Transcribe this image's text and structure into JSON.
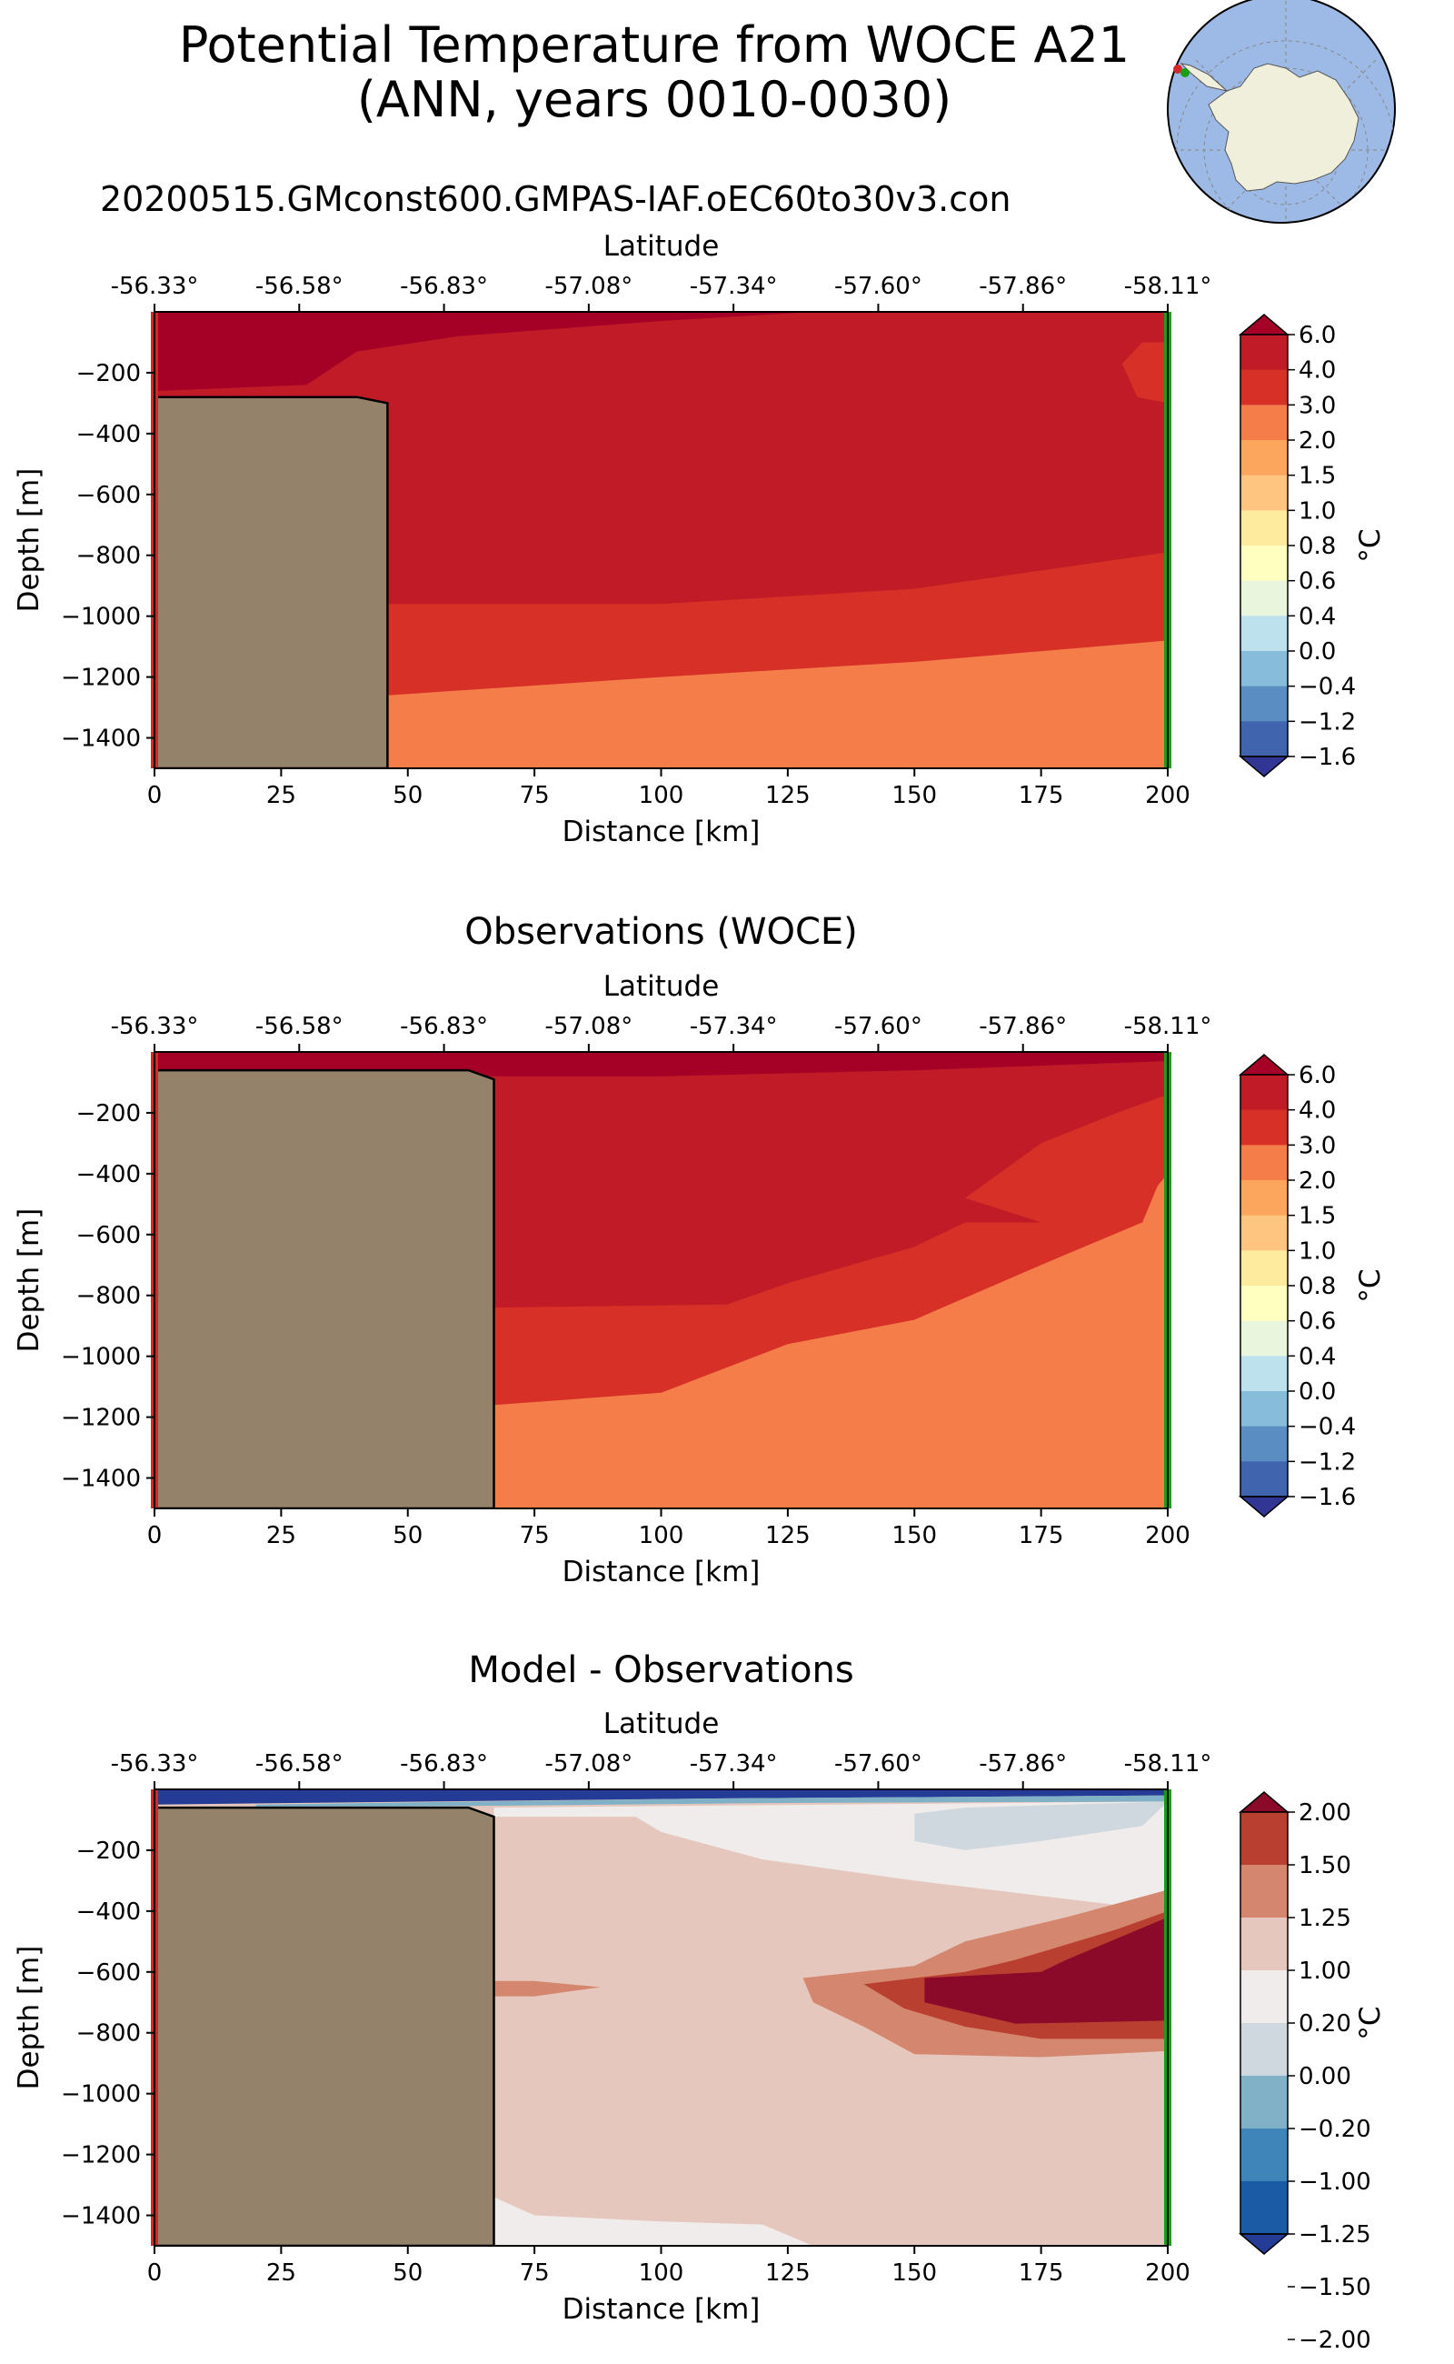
{
  "figure": {
    "title_line1": "Potential Temperature from WOCE A21",
    "title_line2": "(ANN, years 0010-0030)",
    "run_name": "20200515.GMconst600.GMPAS-IAF.oEC60to30v3.con",
    "inset_map": "south-polar-stereographic-antarctica-with-transect-endpoints"
  },
  "colors": {
    "land": "#94836a",
    "section_start_line": "#d62728",
    "section_end_line": "#1a9e1a",
    "map_ocean": "#9db9e6",
    "map_land": "#efefdc"
  },
  "chart_data": [
    {
      "type": "heatmap",
      "panel": "model",
      "title": "",
      "xlabel": "Distance [km]",
      "ylabel": "Depth [m]",
      "top_xlabel": "Latitude",
      "xlim": [
        0,
        200
      ],
      "ylim": [
        -1500,
        0
      ],
      "xticks": [
        0,
        25,
        50,
        75,
        100,
        125,
        150,
        175,
        200
      ],
      "yticks": [
        -200,
        -400,
        -600,
        -800,
        -1000,
        -1200,
        -1400
      ],
      "yticklabels": [
        "−200",
        "−400",
        "−600",
        "−800",
        "−1000",
        "−1200",
        "−1400"
      ],
      "latitude_ticks": [
        "-56.33°",
        "-56.58°",
        "-56.83°",
        "-57.08°",
        "-57.34°",
        "-57.60°",
        "-57.86°",
        "-58.11°"
      ],
      "bathymetry": [
        [
          0,
          -280
        ],
        [
          40,
          -280
        ],
        [
          46,
          -300
        ],
        [
          46,
          -1500
        ]
      ],
      "regions": [
        {
          "level": ">6.0",
          "polygon": [
            [
              0,
              0
            ],
            [
              130,
              0
            ],
            [
              100,
              -30
            ],
            [
              60,
              -80
            ],
            [
              40,
              -130
            ],
            [
              30,
              -240
            ],
            [
              0,
              -260
            ]
          ]
        },
        {
          "level": "3.0-4.0",
          "polygon": [
            [
              200,
              -100
            ],
            [
              195,
              -100
            ],
            [
              191,
              -170
            ],
            [
              194,
              -280
            ],
            [
              200,
              -300
            ]
          ]
        },
        {
          "level": "3.0-4.0",
          "polygon": [
            [
              46,
              -960
            ],
            [
              100,
              -960
            ],
            [
              150,
              -910
            ],
            [
              200,
              -790
            ],
            [
              200,
              -1080
            ],
            [
              150,
              -1150
            ],
            [
              100,
              -1200
            ],
            [
              46,
              -1260
            ]
          ]
        },
        {
          "level": "2.0-3.0",
          "polygon": [
            [
              46,
              -1260
            ],
            [
              100,
              -1200
            ],
            [
              150,
              -1150
            ],
            [
              200,
              -1080
            ],
            [
              200,
              -1500
            ],
            [
              46,
              -1500
            ]
          ]
        }
      ],
      "background_level": "4.0-6.0",
      "colorbar": {
        "label": "°C",
        "ticks": [
          "6.0",
          "4.0",
          "3.0",
          "2.0",
          "1.5",
          "1.0",
          "0.8",
          "0.6",
          "0.4",
          "0.0",
          "−0.4",
          "−1.2",
          "−1.6"
        ],
        "colors": [
          "#a50026",
          "#c01b27",
          "#d73027",
          "#f57d4a",
          "#fca55d",
          "#fdc57f",
          "#feeb9e",
          "#ffffbf",
          "#e9f5dc",
          "#bde2ee",
          "#87bdda",
          "#5a8dc2",
          "#4164ae",
          "#313695"
        ]
      }
    },
    {
      "type": "heatmap",
      "panel": "observations",
      "title": "Observations (WOCE)",
      "xlabel": "Distance [km]",
      "ylabel": "Depth [m]",
      "top_xlabel": "Latitude",
      "xlim": [
        0,
        200
      ],
      "ylim": [
        -1500,
        0
      ],
      "xticks": [
        0,
        25,
        50,
        75,
        100,
        125,
        150,
        175,
        200
      ],
      "yticks": [
        -200,
        -400,
        -600,
        -800,
        -1000,
        -1200,
        -1400
      ],
      "yticklabels": [
        "−200",
        "−400",
        "−600",
        "−800",
        "−1000",
        "−1200",
        "−1400"
      ],
      "latitude_ticks": [
        "-56.33°",
        "-56.58°",
        "-56.83°",
        "-57.08°",
        "-57.34°",
        "-57.60°",
        "-57.86°",
        "-58.11°"
      ],
      "bathymetry": [
        [
          0,
          -60
        ],
        [
          62,
          -60
        ],
        [
          67,
          -90
        ],
        [
          67,
          -1500
        ]
      ],
      "regions": [
        {
          "level": ">6.0",
          "polygon": [
            [
              0,
              0
            ],
            [
              200,
              0
            ],
            [
              200,
              -30
            ],
            [
              150,
              -60
            ],
            [
              100,
              -80
            ],
            [
              0,
              -80
            ]
          ]
        },
        {
          "level": "3.0-4.0",
          "polygon": [
            [
              200,
              -140
            ],
            [
              190,
              -200
            ],
            [
              175,
              -300
            ],
            [
              160,
              -480
            ],
            [
              175,
              -560
            ],
            [
              200,
              -800
            ]
          ]
        },
        {
          "level": "3.0-4.0",
          "polygon": [
            [
              67,
              -840
            ],
            [
              113,
              -830
            ],
            [
              125,
              -760
            ],
            [
              150,
              -640
            ],
            [
              160,
              -560
            ],
            [
              175,
              -560
            ],
            [
              200,
              -570
            ],
            [
              200,
              -820
            ],
            [
              150,
              -880
            ],
            [
              125,
              -960
            ],
            [
              100,
              -1120
            ],
            [
              67,
              -1160
            ]
          ]
        },
        {
          "level": "2.0-3.0",
          "polygon": [
            [
              67,
              -1160
            ],
            [
              100,
              -1120
            ],
            [
              125,
              -960
            ],
            [
              150,
              -880
            ],
            [
              175,
              -700
            ],
            [
              195,
              -560
            ],
            [
              196,
              -520
            ],
            [
              198,
              -440
            ],
            [
              200,
              -400
            ],
            [
              200,
              -1500
            ],
            [
              67,
              -1500
            ]
          ]
        }
      ],
      "background_level": "4.0-6.0",
      "colorbar": {
        "label": "°C",
        "ticks": [
          "6.0",
          "4.0",
          "3.0",
          "2.0",
          "1.5",
          "1.0",
          "0.8",
          "0.6",
          "0.4",
          "0.0",
          "−0.4",
          "−1.2",
          "−1.6"
        ],
        "colors": [
          "#a50026",
          "#c01b27",
          "#d73027",
          "#f57d4a",
          "#fca55d",
          "#fdc57f",
          "#feeb9e",
          "#ffffbf",
          "#e9f5dc",
          "#bde2ee",
          "#87bdda",
          "#5a8dc2",
          "#4164ae",
          "#313695"
        ]
      }
    },
    {
      "type": "heatmap",
      "panel": "model-minus-observations",
      "title": "Model - Observations",
      "xlabel": "Distance [km]",
      "ylabel": "Depth [m]",
      "top_xlabel": "Latitude",
      "xlim": [
        0,
        200
      ],
      "ylim": [
        -1500,
        0
      ],
      "xticks": [
        0,
        25,
        50,
        75,
        100,
        125,
        150,
        175,
        200
      ],
      "yticks": [
        -200,
        -400,
        -600,
        -800,
        -1000,
        -1200,
        -1400
      ],
      "yticklabels": [
        "−200",
        "−400",
        "−600",
        "−800",
        "−1000",
        "−1200",
        "−1400"
      ],
      "latitude_ticks": [
        "-56.33°",
        "-56.58°",
        "-56.83°",
        "-57.08°",
        "-57.34°",
        "-57.60°",
        "-57.86°",
        "-58.11°"
      ],
      "bathymetry": [
        [
          0,
          -60
        ],
        [
          62,
          -60
        ],
        [
          67,
          -90
        ],
        [
          67,
          -1500
        ]
      ],
      "regions": [
        {
          "level": "<-2.0",
          "polygon": [
            [
              0,
              0
            ],
            [
              200,
              0
            ],
            [
              200,
              -20
            ],
            [
              110,
              -30
            ],
            [
              0,
              -50
            ]
          ]
        },
        {
          "level": "-1.25--1.0",
          "polygon": [
            [
              20,
              -50
            ],
            [
              110,
              -30
            ],
            [
              200,
              -20
            ],
            [
              200,
              -40
            ],
            [
              120,
              -45
            ],
            [
              60,
              -55
            ],
            [
              20,
              -60
            ]
          ]
        },
        {
          "level": "-0.2-0.2",
          "polygon": [
            [
              67,
              -60
            ],
            [
              200,
              -40
            ],
            [
              200,
              -400
            ],
            [
              180,
              -360
            ],
            [
              170,
              -340
            ],
            [
              150,
              -300
            ],
            [
              120,
              -230
            ],
            [
              100,
              -140
            ],
            [
              95,
              -90
            ],
            [
              67,
              -90
            ]
          ]
        },
        {
          "level": "-1.0--0.2",
          "polygon": [
            [
              200,
              -40
            ],
            [
              195,
              -120
            ],
            [
              175,
              -170
            ],
            [
              160,
              -200
            ],
            [
              150,
              -170
            ],
            [
              150,
              -80
            ],
            [
              160,
              -60
            ],
            [
              200,
              -40
            ]
          ]
        },
        {
          "level": "1.0-1.25",
          "polygon": [
            [
              67,
              -630
            ],
            [
              75,
              -630
            ],
            [
              88,
              -650
            ],
            [
              75,
              -680
            ],
            [
              67,
              -680
            ]
          ]
        },
        {
          "level": "1.0-1.25",
          "polygon": [
            [
              128,
              -620
            ],
            [
              150,
              -580
            ],
            [
              160,
              -500
            ],
            [
              180,
              -420
            ],
            [
              200,
              -330
            ],
            [
              200,
              -860
            ],
            [
              175,
              -880
            ],
            [
              150,
              -870
            ],
            [
              140,
              -780
            ],
            [
              130,
              -700
            ]
          ]
        },
        {
          "level": "1.25-1.5",
          "polygon": [
            [
              140,
              -640
            ],
            [
              160,
              -600
            ],
            [
              170,
              -560
            ],
            [
              190,
              -460
            ],
            [
              200,
              -400
            ],
            [
              200,
              -820
            ],
            [
              175,
              -820
            ],
            [
              160,
              -780
            ],
            [
              148,
              -720
            ]
          ]
        },
        {
          "level": ">2.0",
          "polygon": [
            [
              152,
              -620
            ],
            [
              175,
              -600
            ],
            [
              180,
              -560
            ],
            [
              200,
              -420
            ],
            [
              200,
              -760
            ],
            [
              170,
              -770
            ],
            [
              152,
              -700
            ]
          ]
        },
        {
          "level": "-0.2-0.2",
          "polygon": [
            [
              67,
              -1340
            ],
            [
              75,
              -1400
            ],
            [
              100,
              -1420
            ],
            [
              120,
              -1430
            ],
            [
              130,
              -1500
            ],
            [
              67,
              -1500
            ]
          ]
        }
      ],
      "background_level": "0.2-1.0",
      "colorbar": {
        "label": "°C",
        "ticks": [
          "2.00",
          "1.50",
          "1.25",
          "1.00",
          "0.20",
          "0.00",
          "−0.20",
          "−1.00",
          "−1.25",
          "−1.50",
          "−2.00"
        ],
        "colors": [
          "#8b0a2a",
          "#b94030",
          "#d4876e",
          "#e6c7bd",
          "#f0ecec",
          "#cfd8de",
          "#80b1c6",
          "#3f85ba",
          "#1b5ba6",
          "#253c96"
        ]
      }
    }
  ]
}
